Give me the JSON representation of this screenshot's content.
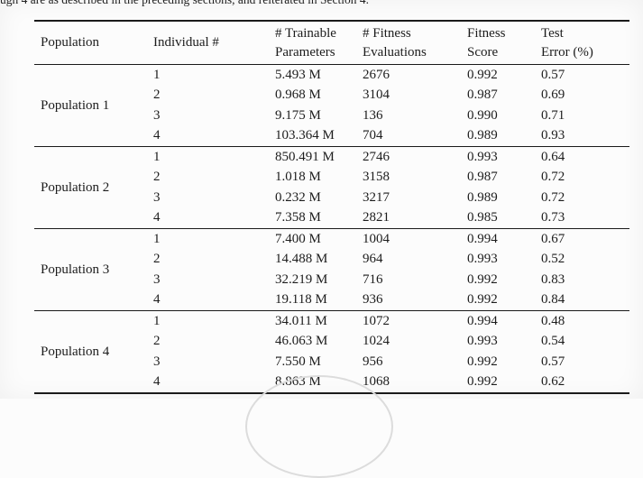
{
  "caption_fragment": "ugh 4 are as described in the preceding sections, and reiterated in Section 4.",
  "colors": {
    "text": "#1c1c1c",
    "rule": "#1a1a1a",
    "background": "#fcfcfc",
    "watermark_arc": "#dcdcdc"
  },
  "table": {
    "headers": [
      {
        "line1": "Population",
        "line2": ""
      },
      {
        "line1": "Individual #",
        "line2": ""
      },
      {
        "line1": "# Trainable",
        "line2": "Parameters"
      },
      {
        "line1": "# Fitness",
        "line2": "Evaluations"
      },
      {
        "line1": "Fitness",
        "line2": "Score"
      },
      {
        "line1": "Test",
        "line2": "Error (%)"
      }
    ],
    "groups": [
      {
        "population": "Population 1",
        "rows": [
          {
            "individual": "1",
            "params": "5.493 M",
            "evals": "2676",
            "fitness": "0.992",
            "test_error": "0.57"
          },
          {
            "individual": "2",
            "params": "0.968 M",
            "evals": "3104",
            "fitness": "0.987",
            "test_error": "0.69"
          },
          {
            "individual": "3",
            "params": "9.175 M",
            "evals": "136",
            "fitness": "0.990",
            "test_error": "0.71"
          },
          {
            "individual": "4",
            "params": "103.364 M",
            "evals": "704",
            "fitness": "0.989",
            "test_error": "0.93"
          }
        ]
      },
      {
        "population": "Population 2",
        "rows": [
          {
            "individual": "1",
            "params": "850.491 M",
            "evals": "2746",
            "fitness": "0.993",
            "test_error": "0.64"
          },
          {
            "individual": "2",
            "params": "1.018 M",
            "evals": "3158",
            "fitness": "0.987",
            "test_error": "0.72"
          },
          {
            "individual": "3",
            "params": "0.232 M",
            "evals": "3217",
            "fitness": "0.989",
            "test_error": "0.72"
          },
          {
            "individual": "4",
            "params": "7.358 M",
            "evals": "2821",
            "fitness": "0.985",
            "test_error": "0.73"
          }
        ]
      },
      {
        "population": "Population 3",
        "rows": [
          {
            "individual": "1",
            "params": "7.400 M",
            "evals": "1004",
            "fitness": "0.994",
            "test_error": "0.67"
          },
          {
            "individual": "2",
            "params": "14.488 M",
            "evals": "964",
            "fitness": "0.993",
            "test_error": "0.52"
          },
          {
            "individual": "3",
            "params": "32.219 M",
            "evals": "716",
            "fitness": "0.992",
            "test_error": "0.83"
          },
          {
            "individual": "4",
            "params": "19.118 M",
            "evals": "936",
            "fitness": "0.992",
            "test_error": "0.84"
          }
        ]
      },
      {
        "population": "Population 4",
        "rows": [
          {
            "individual": "1",
            "params": "34.011 M",
            "evals": "1072",
            "fitness": "0.994",
            "test_error": "0.48"
          },
          {
            "individual": "2",
            "params": "46.063 M",
            "evals": "1024",
            "fitness": "0.993",
            "test_error": "0.54"
          },
          {
            "individual": "3",
            "params": "7.550 M",
            "evals": "956",
            "fitness": "0.992",
            "test_error": "0.57"
          },
          {
            "individual": "4",
            "params": "8.863 M",
            "evals": "1068",
            "fitness": "0.992",
            "test_error": "0.62"
          }
        ]
      }
    ]
  }
}
